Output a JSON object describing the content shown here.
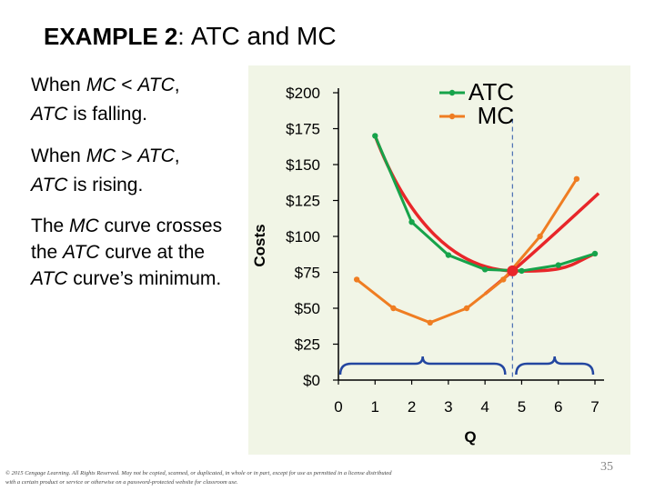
{
  "slide": {
    "title_bold": "EXAMPLE 2",
    "title_colon": ":",
    "title_rest": "ATC and MC",
    "bullet1": {
      "pre": "When ",
      "term1": "MC",
      "mid": " < ",
      "term2": "ATC",
      "post": ",",
      "line2_term": "ATC",
      "line2_rest": " is falling."
    },
    "bullet2": {
      "pre": "When ",
      "term1": "MC",
      "mid": " > ",
      "term2": "ATC",
      "post": ",",
      "line2_term": "ATC",
      "line2_rest": " is rising."
    },
    "bullet3": {
      "pre": "The ",
      "term1": "MC",
      "mid": " curve crosses the ",
      "term2": "ATC",
      "mid2": " curve at the ",
      "term3": "ATC",
      "post": " curve’s minimum."
    },
    "footer": "© 2015 Cengage Learning. All Rights Reserved. May not be copied, scanned, or duplicated, in whole or in part, except for use as permitted in a license distributed with a certain product or service or otherwise on a password-protected website for classroom use.",
    "page_number": "35"
  },
  "chart_data": {
    "type": "line",
    "xlabel": "Q",
    "ylabel": "Costs",
    "xlim": [
      0,
      7
    ],
    "ylim": [
      0,
      200
    ],
    "x_ticks": [
      "0",
      "1",
      "2",
      "3",
      "4",
      "5",
      "6",
      "7"
    ],
    "y_ticks": [
      "$0",
      "$25",
      "$50",
      "$75",
      "$100",
      "$125",
      "$150",
      "$175",
      "$200"
    ],
    "series": [
      {
        "name": "ATC",
        "color": "#16a34a",
        "x": [
          1,
          2,
          3,
          4,
          5,
          6,
          7
        ],
        "y": [
          170,
          110,
          87,
          77,
          76,
          80,
          88
        ]
      },
      {
        "name": "MC",
        "color": "#ef7d22",
        "x": [
          0.5,
          1.5,
          2.5,
          3.5,
          4.5,
          5.5,
          6.5
        ],
        "y": [
          70,
          50,
          40,
          50,
          70,
          100,
          140
        ]
      }
    ],
    "smooth_curves_color": "#e8262a",
    "intersection": {
      "x": 4.75,
      "y": 76,
      "color": "#e8262a"
    },
    "dashed_line_x": 4.75,
    "legend_position": "top-right",
    "grid": false
  }
}
